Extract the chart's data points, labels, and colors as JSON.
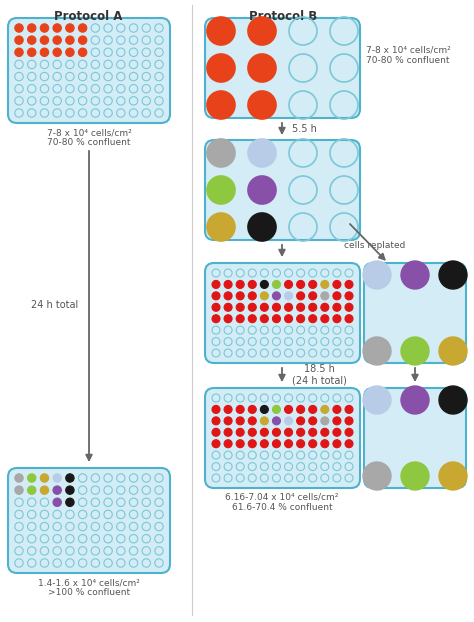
{
  "title_A": "Protocol A",
  "title_B": "Protocol B",
  "bg_color": "#ffffff",
  "plate_bg": "#d4ecf5",
  "plate_border": "#4db3cc",
  "orange_red": "#e8421a",
  "empty_fill": "none",
  "empty_ec": "#7ac8d8",
  "gray_c": "#a8a8a8",
  "lightblue_c": "#b8cce8",
  "green_c": "#8ec840",
  "purple_c": "#8850a8",
  "black_c": "#181818",
  "yellow_c": "#c8a830",
  "red_d": "#e01515",
  "text_color": "#555555",
  "arrow_color": "#666666",
  "label_A_top": "7-8 x 10⁴ cells/cm²\n70-80 % confluent",
  "label_A_bottom": "1.4-1.6 x 10⁴ cells/cm²\n>100 % confluent",
  "label_B_top": "7-8 x 10⁴ cells/cm²\n70-80 % confluent",
  "label_B_bottom": "6.16-7.04 x 10⁴ cells/cm²\n61.6-70.4 % confluent",
  "lbl_24h": "24 h total",
  "lbl_55h": "5.5 h",
  "lbl_replated": "cells replated",
  "lbl_185h": "18.5 h\n(24 h total)"
}
